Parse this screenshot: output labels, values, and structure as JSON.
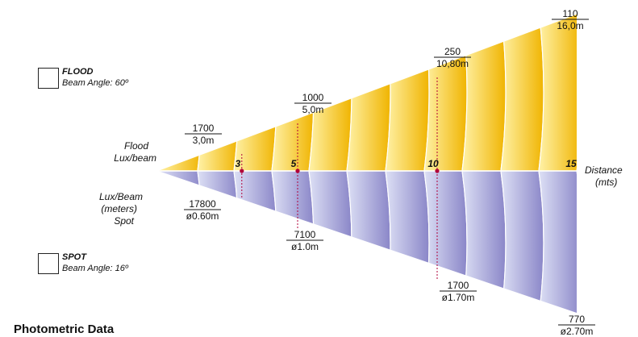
{
  "title": "Photometric Data",
  "colors": {
    "flood_light": "#fff2a8",
    "flood_dark": "#f0b400",
    "spot_light": "#dde0f5",
    "spot_dark": "#8a86c8",
    "marker": "#b0003a"
  },
  "legend": {
    "flood": {
      "name": "FLOOD",
      "beam_angle": "Beam Angle: 60º"
    },
    "spot": {
      "name": "SPOT",
      "beam_angle": "Beam Angle: 16º"
    }
  },
  "axis": {
    "flood_label_line1": "Flood",
    "flood_label_line2": "Lux/beam",
    "spot_label_line1": "Lux/Beam",
    "spot_label_line2": "(meters)",
    "spot_label_line3": "Spot",
    "distance_label": "Distance",
    "distance_unit": "(mts)",
    "ticks": [
      "3",
      "5",
      "10",
      "15"
    ]
  },
  "chart_data": {
    "type": "table",
    "distance_unit": "m",
    "flood": {
      "beam_angle_deg": 60,
      "points": [
        {
          "distance": 3,
          "lux": "1700",
          "diameter": "3,0m"
        },
        {
          "distance": 5,
          "lux": "1000",
          "diameter": "5,0m"
        },
        {
          "distance": 10,
          "lux": "250",
          "diameter": "10,80m"
        },
        {
          "distance": 15,
          "lux": "110",
          "diameter": "16,0m"
        }
      ]
    },
    "spot": {
      "beam_angle_deg": 16,
      "points": [
        {
          "distance": 3,
          "lux": "17800",
          "diameter": "ø0.60m"
        },
        {
          "distance": 5,
          "lux": "7100",
          "diameter": "ø1.0m"
        },
        {
          "distance": 10,
          "lux": "1700",
          "diameter": "ø1.70m"
        },
        {
          "distance": 15,
          "lux": "770",
          "diameter": "ø2.70m"
        }
      ]
    }
  }
}
